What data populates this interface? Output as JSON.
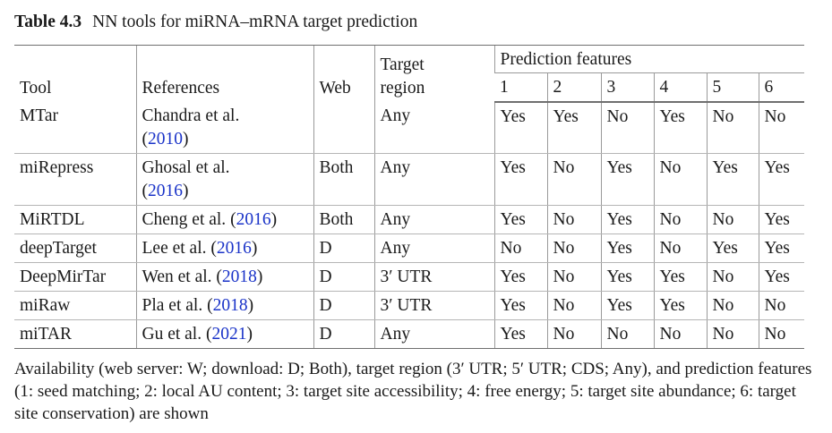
{
  "caption": {
    "label": "Table 4.3",
    "title": "NN tools for miRNA–mRNA target prediction"
  },
  "table": {
    "headers": {
      "tool": "Tool",
      "references": "References",
      "web": "Web",
      "target_region_line1": "Target",
      "target_region_line2": "region",
      "prediction_features": "Prediction features",
      "feature_numbers": [
        "1",
        "2",
        "3",
        "4",
        "5",
        "6"
      ]
    },
    "rows": [
      {
        "tool": "MTar",
        "ref_pre": "Chandra et al.",
        "ref_year": "2010",
        "web": "",
        "region": "Any",
        "features": [
          "Yes",
          "Yes",
          "No",
          "Yes",
          "No",
          "No"
        ]
      },
      {
        "tool": "miRepress",
        "ref_pre": "Ghosal et al.",
        "ref_year": "2016",
        "web": "Both",
        "region": "Any",
        "features": [
          "Yes",
          "No",
          "Yes",
          "No",
          "Yes",
          "Yes"
        ]
      },
      {
        "tool": "MiRTDL",
        "ref_pre": "Cheng et al.",
        "ref_year": "2016",
        "web": "Both",
        "region": "Any",
        "features": [
          "Yes",
          "No",
          "Yes",
          "No",
          "No",
          "Yes"
        ]
      },
      {
        "tool": "deepTarget",
        "ref_pre": "Lee et al.",
        "ref_year": "2016",
        "web": "D",
        "region": "Any",
        "features": [
          "No",
          "No",
          "Yes",
          "No",
          "Yes",
          "Yes"
        ]
      },
      {
        "tool": "DeepMirTar",
        "ref_pre": "Wen et al.",
        "ref_year": "2018",
        "web": "D",
        "region": "3′ UTR",
        "features": [
          "Yes",
          "No",
          "Yes",
          "Yes",
          "No",
          "Yes"
        ]
      },
      {
        "tool": "miRaw",
        "ref_pre": "Pla et al.",
        "ref_year": "2018",
        "web": "D",
        "region": "3′ UTR",
        "features": [
          "Yes",
          "No",
          "Yes",
          "Yes",
          "No",
          "No"
        ]
      },
      {
        "tool": "miTAR",
        "ref_pre": "Gu et al.",
        "ref_year": "2021",
        "web": "D",
        "region": "Any",
        "features": [
          "Yes",
          "No",
          "No",
          "No",
          "No",
          "No"
        ]
      }
    ]
  },
  "footnote": "Availability (web server: W; download: D; Both), target region (3′ UTR; 5′ UTR; CDS; Any), and prediction features (1: seed matching; 2: local AU content; 3: target site accessibility; 4: free energy; 5: target site abundance; 6: target site conservation) are shown"
}
